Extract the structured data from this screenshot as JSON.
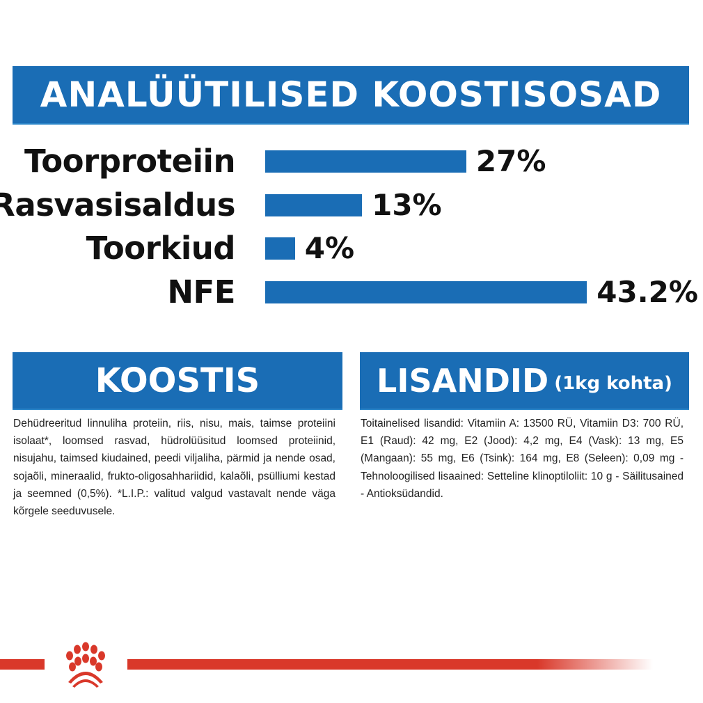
{
  "header": {
    "title": "ANALÜÜTILISED KOOSTISOSAD"
  },
  "chart_data": {
    "type": "bar",
    "orientation": "horizontal",
    "categories": [
      "Toorproteiin",
      "Rasvasisaldus",
      "Toorkiud",
      "NFE"
    ],
    "values": [
      27,
      13,
      4,
      43.2
    ],
    "value_labels": [
      "27%",
      "13%",
      "4%",
      "43.2%"
    ],
    "unit": "%",
    "bar_color": "#1a6db5",
    "grid": false
  },
  "composition": {
    "title": "KOOSTIS",
    "text": "Dehüdreeritud linnuliha proteiin, riis, nisu, mais, taimse proteiini isolaat*, loomsed rasvad, hüdrolüüsitud loomsed proteiinid, nisujahu, taimsed kiudained, peedi viljaliha, pärmid ja nende osad, sojaõli, mineraalid, frukto-oligosahhariidid, kalaõli, psülliumi kestad ja seemned (0,5%). *L.I.P.: valitud valgud vastavalt nende väga kõrgele seeduvusele."
  },
  "additives": {
    "title": "LISANDID",
    "subtitle": "(1kg kohta)",
    "text": "Toitainelised lisandid: Vitamiin A: 13500 RÜ, Vitamiin D3: 700 RÜ, E1 (Raud): 42 mg, E2 (Jood): 4,2 mg, E4 (Vask): 13 mg, E5 (Mangaan): 55 mg, E6 (Tsink): 164 mg, E8 (Seleen): 0,09 mg - Tehnoloogilised lisaained: Setteline klinoptiloliit: 10 g - Säilitusained - Antioksüdandid."
  },
  "footer": {
    "logo": "royal-canin-crown-logo",
    "accent_color": "#d9382a"
  }
}
